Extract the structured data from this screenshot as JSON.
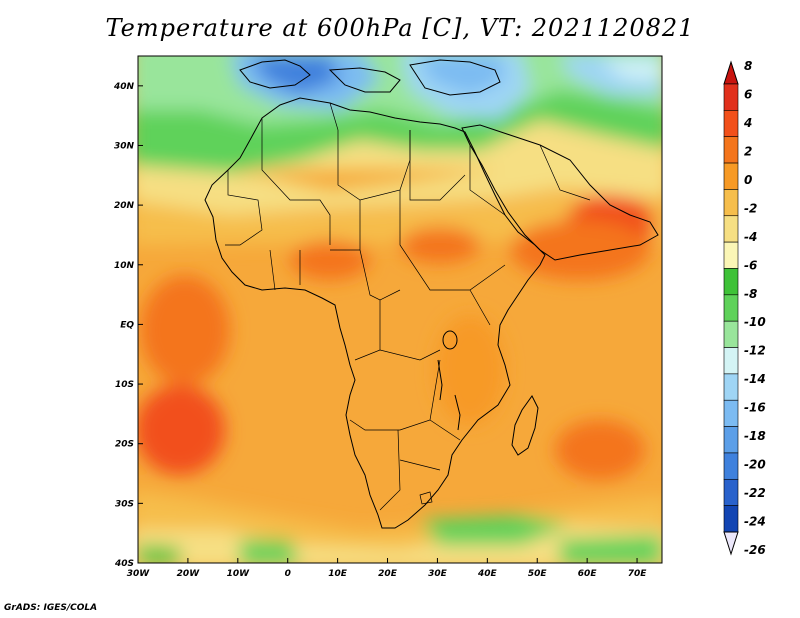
{
  "title": "Temperature at 600hPa [C], VT: 2021120821",
  "credit": "GrADS: IGES/COLA",
  "map": {
    "lon_range": [
      -30,
      75
    ],
    "lat_range": [
      -40,
      45
    ],
    "lon_ticks": [
      {
        "value": -30,
        "label": "30W"
      },
      {
        "value": -20,
        "label": "20W"
      },
      {
        "value": -10,
        "label": "10W"
      },
      {
        "value": 0,
        "label": "0"
      },
      {
        "value": 10,
        "label": "10E"
      },
      {
        "value": 20,
        "label": "20E"
      },
      {
        "value": 30,
        "label": "30E"
      },
      {
        "value": 40,
        "label": "40E"
      },
      {
        "value": 50,
        "label": "50E"
      },
      {
        "value": 60,
        "label": "60E"
      },
      {
        "value": 70,
        "label": "70E"
      }
    ],
    "lat_ticks": [
      {
        "value": 40,
        "label": "40N"
      },
      {
        "value": 30,
        "label": "30N"
      },
      {
        "value": 20,
        "label": "20N"
      },
      {
        "value": 10,
        "label": "10N"
      },
      {
        "value": 0,
        "label": "EQ"
      },
      {
        "value": -10,
        "label": "10S"
      },
      {
        "value": -20,
        "label": "20S"
      },
      {
        "value": -30,
        "label": "30S"
      },
      {
        "value": -40,
        "label": "40S"
      }
    ]
  },
  "colorbar": {
    "labels": [
      "8",
      "6",
      "4",
      "2",
      "0",
      "-2",
      "-4",
      "-6",
      "-8",
      "-10",
      "-12",
      "-14",
      "-16",
      "-18",
      "-20",
      "-22",
      "-24",
      "-26"
    ],
    "colors": [
      "#e1301c",
      "#f2501a",
      "#f4751c",
      "#f79a25",
      "#f6be4c",
      "#f6df83",
      "#fbf6b6",
      "#3fc238",
      "#5fd25a",
      "#99e59b",
      "#d4f4f5",
      "#9fd5f5",
      "#7cbbf2",
      "#5c9fe8",
      "#3f81dd",
      "#2962cc",
      "#1245b3",
      "#0a1f82"
    ]
  }
}
